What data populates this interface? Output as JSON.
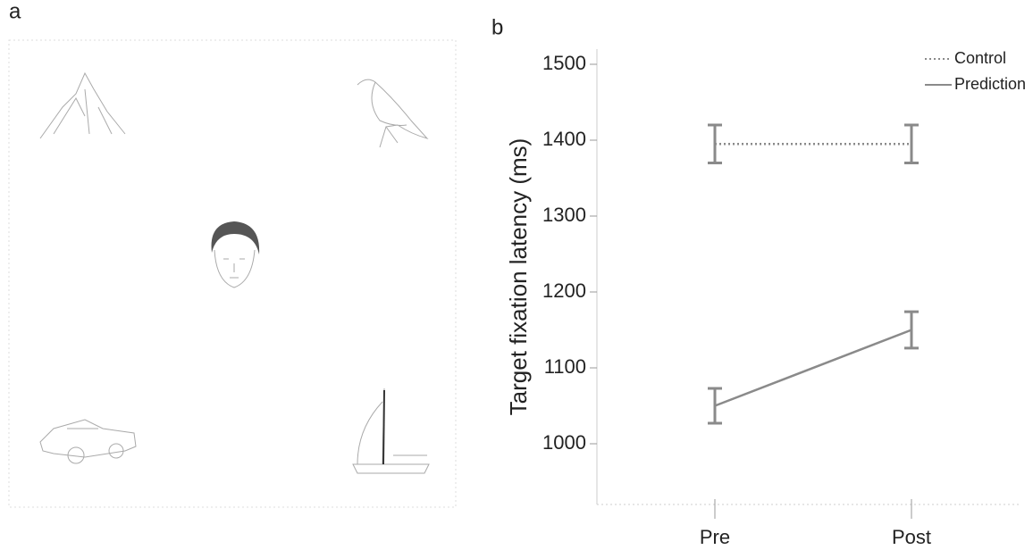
{
  "panel_a": {
    "label": "a"
  },
  "chart_data": {
    "type": "line",
    "panel_label": "b",
    "y_label": "Target fixation latency (ms)",
    "categories": [
      "Pre",
      "Post"
    ],
    "series": [
      {
        "name": "Control",
        "color": "#8a8a8a",
        "style": "dotted",
        "values": [
          1395,
          1395
        ],
        "errors": [
          25,
          25
        ]
      },
      {
        "name": "Prediction",
        "color": "#8a8a8a",
        "style": "solid",
        "values": [
          1050,
          1150
        ],
        "errors": [
          23,
          24
        ]
      }
    ],
    "ylim": [
      920,
      1520
    ],
    "yticks": [
      1000,
      1100,
      1200,
      1300,
      1400,
      1500
    ],
    "legend": "upper right"
  }
}
